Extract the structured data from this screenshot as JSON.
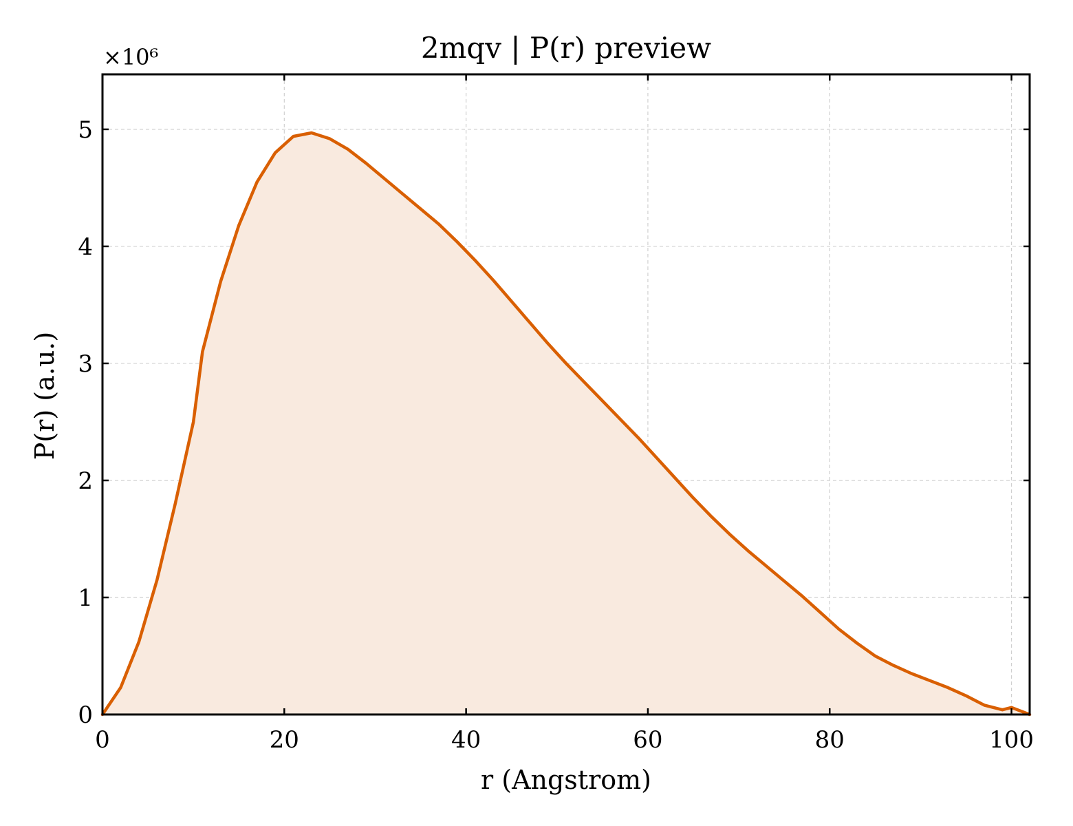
{
  "chart_data": {
    "type": "area",
    "title": "2mqv | P(r) preview",
    "xlabel": "r (Angstrom)",
    "ylabel": "P(r) (a.u.)",
    "y_offset_label": "×10⁶",
    "xlim": [
      0,
      102
    ],
    "ylim": [
      0,
      5.47
    ],
    "y_scale_multiplier": 1000000,
    "xticks": [
      0,
      20,
      40,
      60,
      80,
      100
    ],
    "yticks": [
      0,
      1,
      2,
      3,
      4,
      5
    ],
    "grid": true,
    "grid_style": "dashed",
    "tick_direction": "in",
    "colors": {
      "line": "#d95f02",
      "fill": "#f9eadf",
      "grid": "#d0d0d0",
      "axes": "#000000"
    },
    "series": [
      {
        "x": [
          0,
          2,
          4,
          6,
          8,
          10,
          11,
          13,
          15,
          17,
          19,
          21,
          23,
          25,
          27,
          29,
          31,
          33,
          35,
          37,
          39,
          41,
          43,
          45,
          47,
          49,
          51,
          53,
          55,
          57,
          59,
          61,
          63,
          65,
          67,
          69,
          71,
          73,
          75,
          77,
          79,
          81,
          83,
          85,
          87,
          89,
          91,
          93,
          95,
          97,
          99,
          100,
          102
        ],
        "y": [
          0.0,
          0.23,
          0.62,
          1.15,
          1.8,
          2.5,
          3.1,
          3.7,
          4.18,
          4.55,
          4.8,
          4.94,
          4.97,
          4.92,
          4.83,
          4.71,
          4.58,
          4.45,
          4.32,
          4.19,
          4.04,
          3.88,
          3.71,
          3.53,
          3.35,
          3.17,
          3.0,
          2.84,
          2.68,
          2.52,
          2.36,
          2.19,
          2.02,
          1.85,
          1.69,
          1.54,
          1.4,
          1.27,
          1.14,
          1.01,
          0.87,
          0.73,
          0.61,
          0.5,
          0.42,
          0.35,
          0.29,
          0.23,
          0.16,
          0.08,
          0.04,
          0.06,
          0.0
        ]
      }
    ]
  }
}
